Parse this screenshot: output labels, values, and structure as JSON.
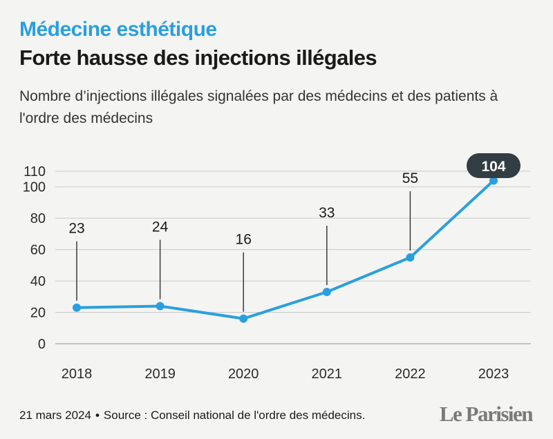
{
  "kicker": "Médecine esthétique",
  "headline": "Forte hausse des injections illégales",
  "subtitle": "Nombre d’injections illégales signalées par des médecins et des patients à l'ordre des médecins",
  "footer": {
    "date": "21 mars 2024",
    "source": "Source : Conseil national de l'ordre des médecins."
  },
  "logo": "Le Parisien",
  "colors": {
    "accent": "#2a9fdf",
    "highlight_badge": "#333d44",
    "grid": "#c9c9c9",
    "background": "#f4f4f2"
  },
  "chart_data": {
    "type": "line",
    "title": "Forte hausse des injections illégales",
    "subtitle": "Nombre d’injections illégales signalées par des médecins et des patients à l'ordre des médecins",
    "xlabel": "",
    "ylabel": "",
    "categories": [
      "2018",
      "2019",
      "2020",
      "2021",
      "2022",
      "2023"
    ],
    "values": [
      23,
      24,
      16,
      33,
      55,
      104
    ],
    "data_labels": [
      "23",
      "24",
      "16",
      "33",
      "55",
      "104"
    ],
    "highlight_index": 5,
    "ylim": [
      0,
      110
    ],
    "yticks": [
      0,
      20,
      40,
      60,
      80,
      100,
      110
    ],
    "grid": "horizontal",
    "legend": "none"
  }
}
